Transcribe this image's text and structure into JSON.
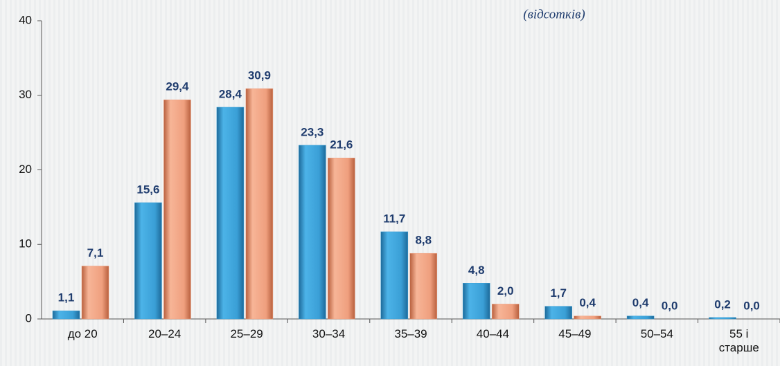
{
  "chart_data": {
    "type": "bar",
    "subtitle": "(відсотків)",
    "categories": [
      "до 20",
      "20–24",
      "25–29",
      "30–34",
      "35–39",
      "40–44",
      "45–49",
      "50–54",
      "55 і старше"
    ],
    "series": [
      {
        "color": "#3a9fd6",
        "values": [
          1.1,
          15.6,
          28.4,
          23.3,
          11.7,
          4.8,
          1.7,
          0.4,
          0.2
        ],
        "value_labels": [
          "1,1",
          "15,6",
          "28,4",
          "23,3",
          "11,7",
          "4,8",
          "1,7",
          "0,4",
          "0,2"
        ]
      },
      {
        "color": "#ef9f7e",
        "values": [
          7.1,
          29.4,
          30.9,
          21.6,
          8.8,
          2.0,
          0.4,
          0.0,
          0.0
        ],
        "value_labels": [
          "7,1",
          "29,4",
          "30,9",
          "21,6",
          "8,8",
          "2,0",
          "0,4",
          "0,0",
          "0,0"
        ]
      }
    ],
    "ylim": [
      0,
      40
    ],
    "yticks": [
      0,
      10,
      20,
      30,
      40
    ]
  }
}
